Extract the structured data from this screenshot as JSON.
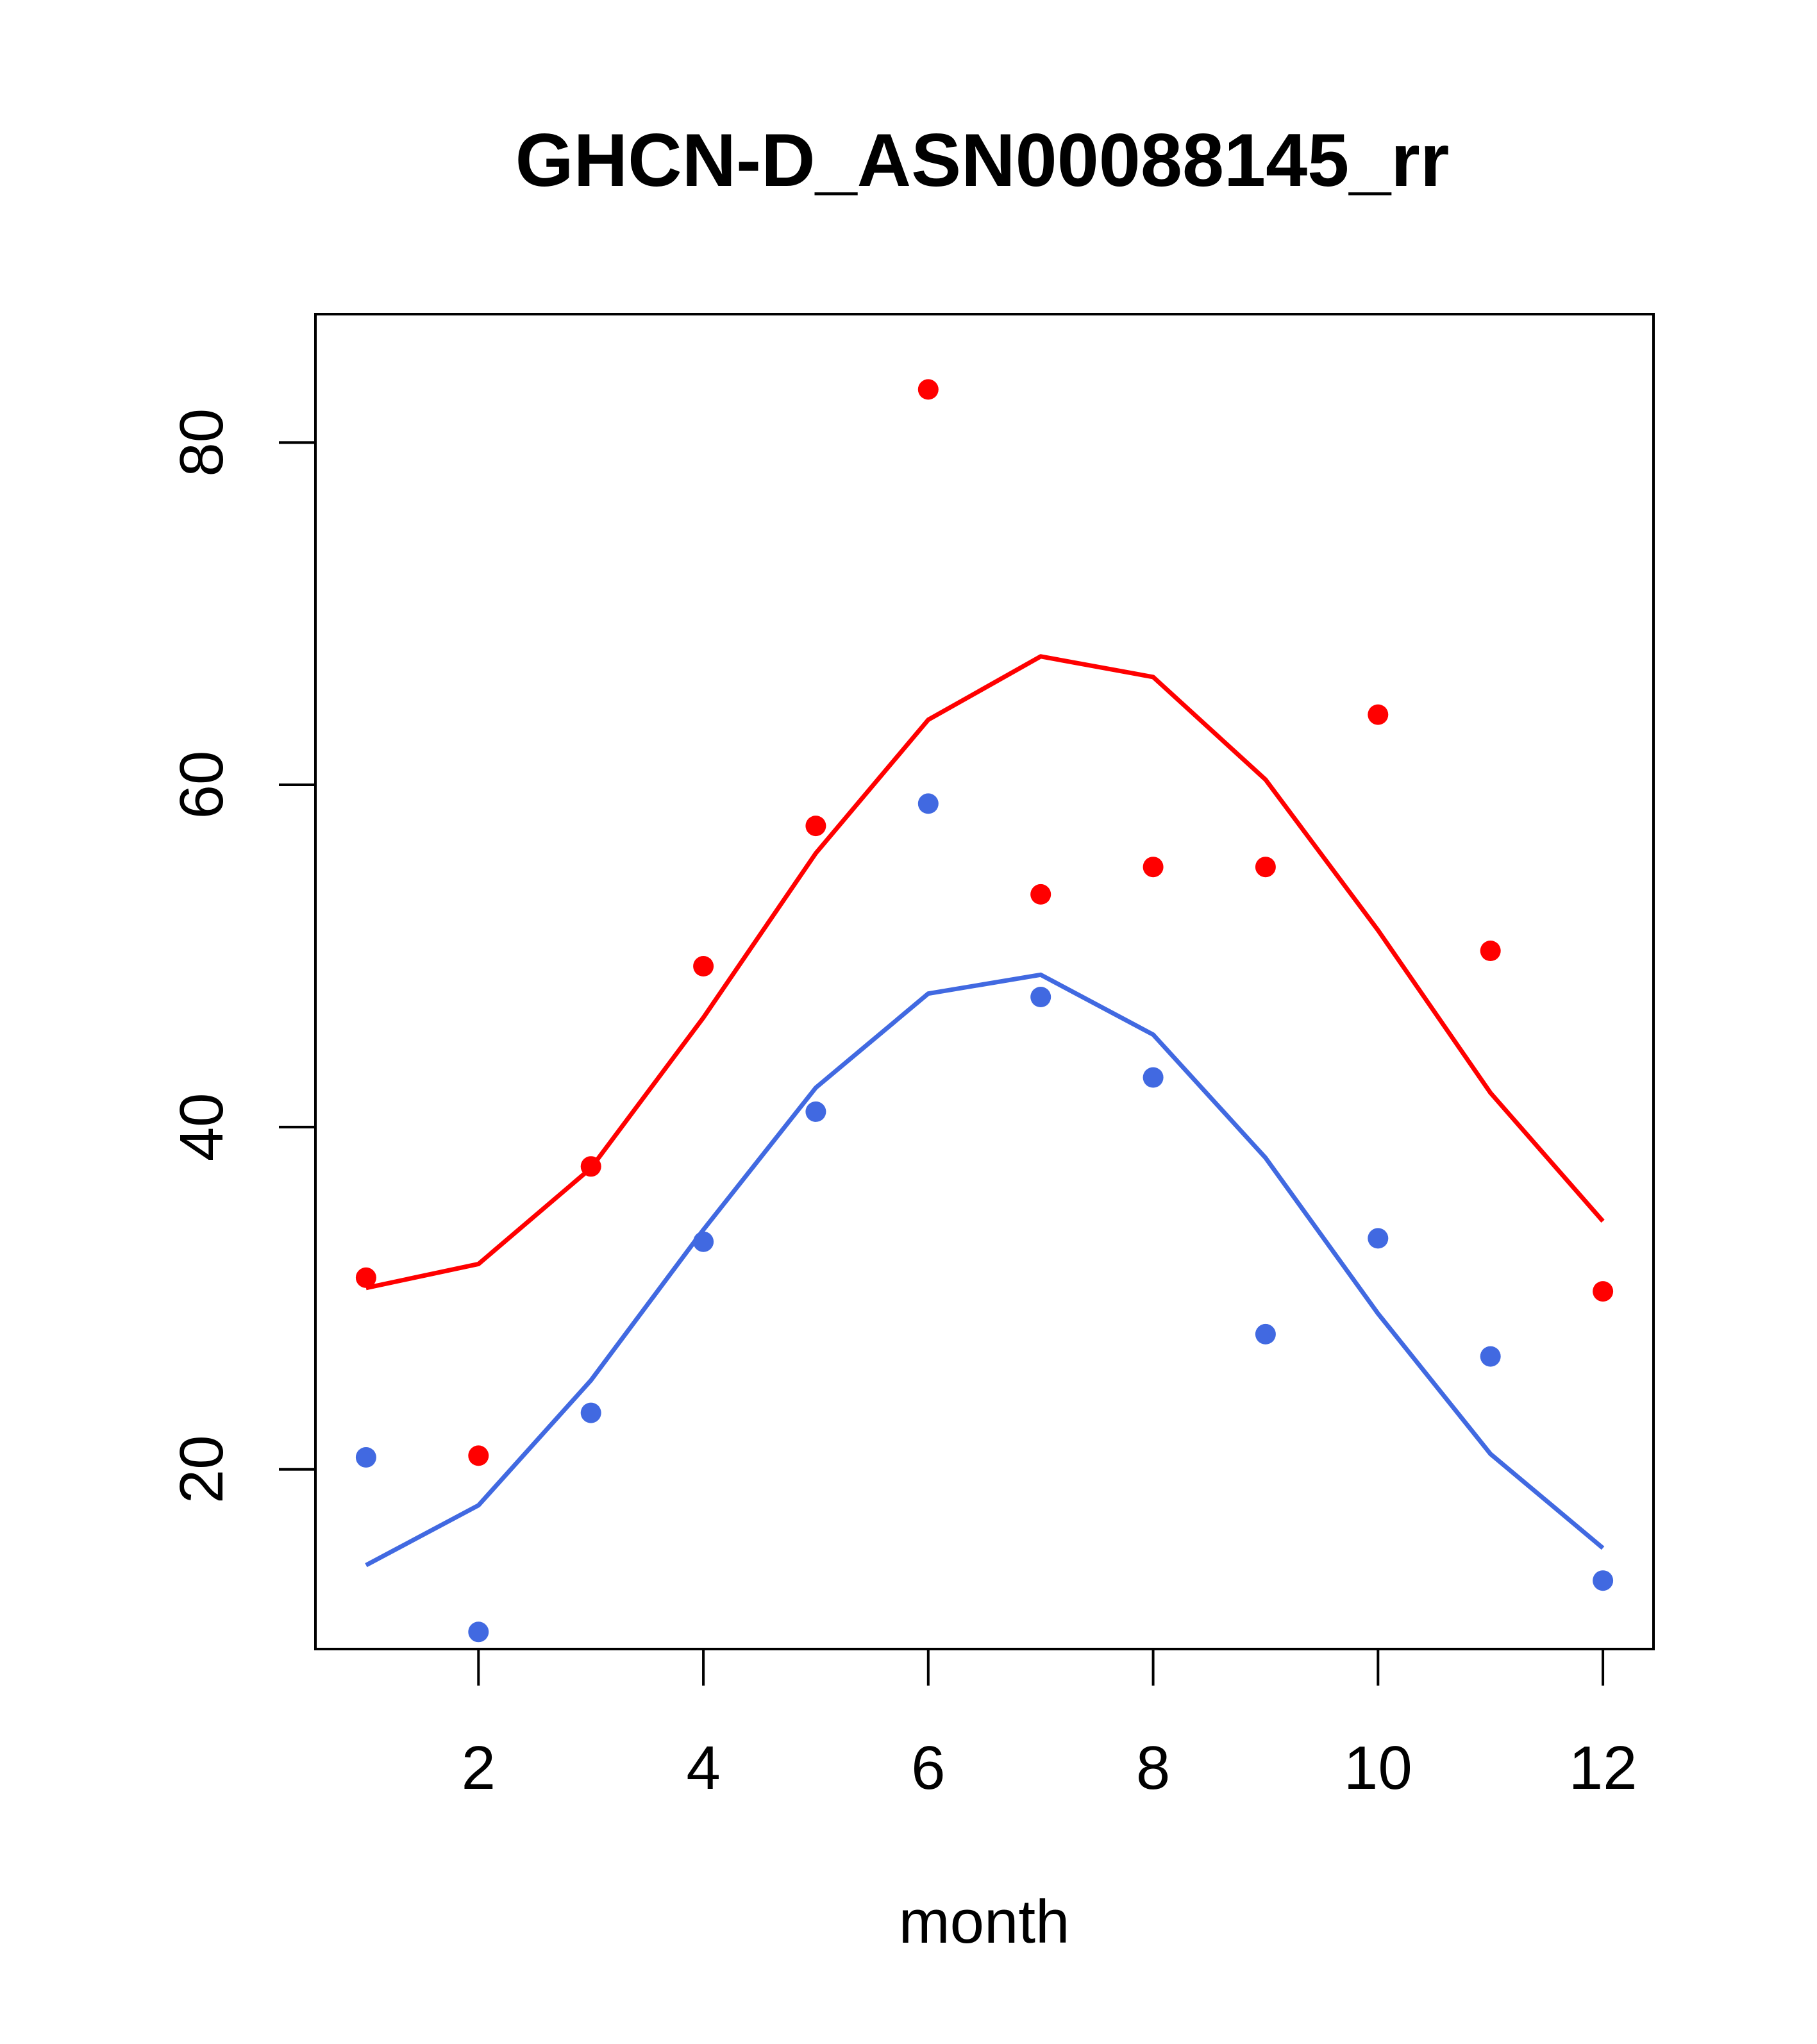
{
  "chart_data": {
    "type": "line",
    "title": "GHCN-D_ASN00088145_rr",
    "xlabel": "month",
    "ylabel": "",
    "xlim": [
      0.55,
      12.45
    ],
    "ylim": [
      9.5,
      87.5
    ],
    "x_ticks": [
      2,
      4,
      6,
      8,
      10,
      12
    ],
    "y_ticks": [
      20,
      40,
      60,
      80
    ],
    "grid": false,
    "legend": "none",
    "x": [
      1,
      2,
      3,
      4,
      5,
      6,
      7,
      8,
      9,
      10,
      11,
      12
    ],
    "series": [
      {
        "color": "#ff0000",
        "line_values": [
          30.6,
          32.0,
          37.6,
          46.4,
          56.0,
          63.8,
          67.5,
          66.3,
          60.3,
          51.5,
          42.0,
          34.5
        ],
        "point_values": [
          31.2,
          20.8,
          37.7,
          49.4,
          57.6,
          83.1,
          53.6,
          55.2,
          55.2,
          64.1,
          50.3,
          30.4
        ]
      },
      {
        "color": "#4169e1",
        "line_values": [
          14.4,
          17.9,
          25.2,
          34.0,
          42.3,
          47.8,
          48.9,
          45.4,
          38.2,
          29.1,
          20.9,
          15.4
        ],
        "point_values": [
          20.7,
          10.5,
          23.3,
          33.3,
          40.9,
          58.9,
          47.6,
          42.9,
          27.9,
          33.5,
          26.6,
          13.5
        ]
      }
    ]
  }
}
